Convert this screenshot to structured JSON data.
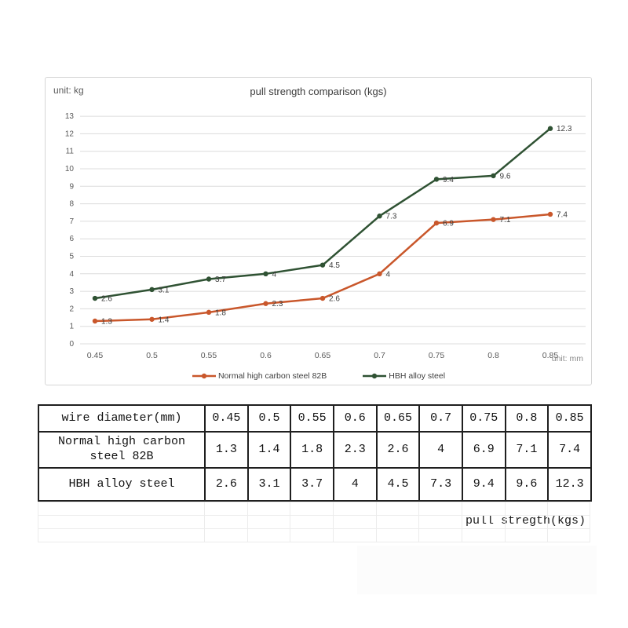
{
  "chart": {
    "unit_left": "unit: kg",
    "unit_right": "unit: mm"
  },
  "chart_data": {
    "type": "line",
    "title": "pull strength comparison (kgs)",
    "x": [
      0.45,
      0.5,
      0.55,
      0.6,
      0.65,
      0.7,
      0.75,
      0.8,
      0.85
    ],
    "xtick_labels": [
      "0.45",
      "0.5",
      "0.55",
      "0.6",
      "0.65",
      "0.7",
      "0.75",
      "0.8",
      "0.85"
    ],
    "series": [
      {
        "name": "Normal high carbon steel 82B",
        "color": "#C9572B",
        "values": [
          1.3,
          1.4,
          1.8,
          2.3,
          2.6,
          4,
          6.9,
          7.1,
          7.4
        ],
        "point_labels": [
          "1.3",
          "1.4",
          "1.8",
          "2.3",
          "2.6",
          "4",
          "6.9",
          "7.1",
          "7.4"
        ]
      },
      {
        "name": "HBH alloy steel",
        "color": "#2F5233",
        "values": [
          2.6,
          3.1,
          3.7,
          4,
          4.5,
          7.3,
          9.4,
          9.6,
          12.3
        ],
        "point_labels": [
          "2.6",
          "3.1",
          "3.7",
          "4",
          "4.5",
          "7.3",
          "9.4",
          "9.6",
          "12.3"
        ]
      }
    ],
    "xlabel": "",
    "ylabel": "",
    "ylim": [
      0,
      13
    ],
    "ytick_step": 1,
    "grid": true,
    "legend_position": "bottom",
    "colors": {
      "gridline": "#dcdcdc",
      "tick_text": "#595959",
      "point_label_text": "#3f3f3f"
    }
  },
  "table": {
    "rows": [
      {
        "header": "wire diameter(mm)",
        "values": [
          "0.45",
          "0.5",
          "0.55",
          "0.6",
          "0.65",
          "0.7",
          "0.75",
          "0.8",
          "0.85"
        ]
      },
      {
        "header": "Normal high carbon steel 82B",
        "values": [
          "1.3",
          "1.4",
          "1.8",
          "2.3",
          "2.6",
          "4",
          "6.9",
          "7.1",
          "7.4"
        ]
      },
      {
        "header": "HBH alloy steel",
        "values": [
          "2.6",
          "3.1",
          "3.7",
          "4",
          "4.5",
          "7.3",
          "9.4",
          "9.6",
          "12.3"
        ]
      }
    ]
  },
  "footer": {
    "caption": "pull stregth(kgs)"
  }
}
